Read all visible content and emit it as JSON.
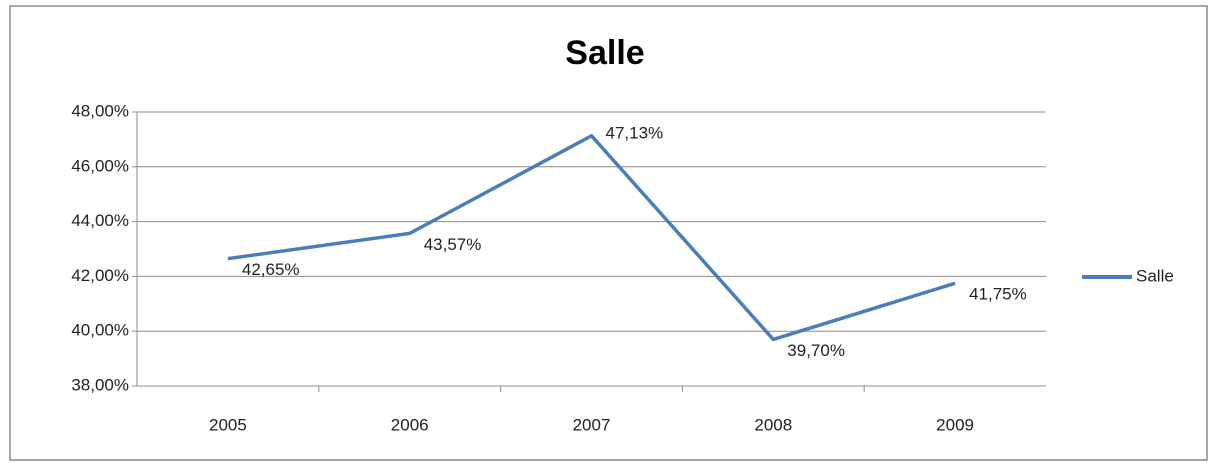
{
  "chart_data": {
    "type": "line",
    "title": "Salle",
    "categories": [
      "2005",
      "2006",
      "2007",
      "2008",
      "2009"
    ],
    "series": [
      {
        "name": "Salle",
        "color": "#4a7ebb",
        "values": [
          42.65,
          43.57,
          47.13,
          39.7,
          41.75
        ],
        "value_labels": [
          "42,65%",
          "43,57%",
          "47,13%",
          "39,70%",
          "41,75%"
        ]
      }
    ],
    "ylim": [
      38,
      48
    ],
    "yticks": [
      {
        "value": 38,
        "label": "38,00%"
      },
      {
        "value": 40,
        "label": "40,00%"
      },
      {
        "value": 42,
        "label": "42,00%"
      },
      {
        "value": 44,
        "label": "44,00%"
      },
      {
        "value": 46,
        "label": "46,00%"
      },
      {
        "value": 48,
        "label": "48,00%"
      }
    ],
    "grid": true,
    "legend": "right"
  }
}
